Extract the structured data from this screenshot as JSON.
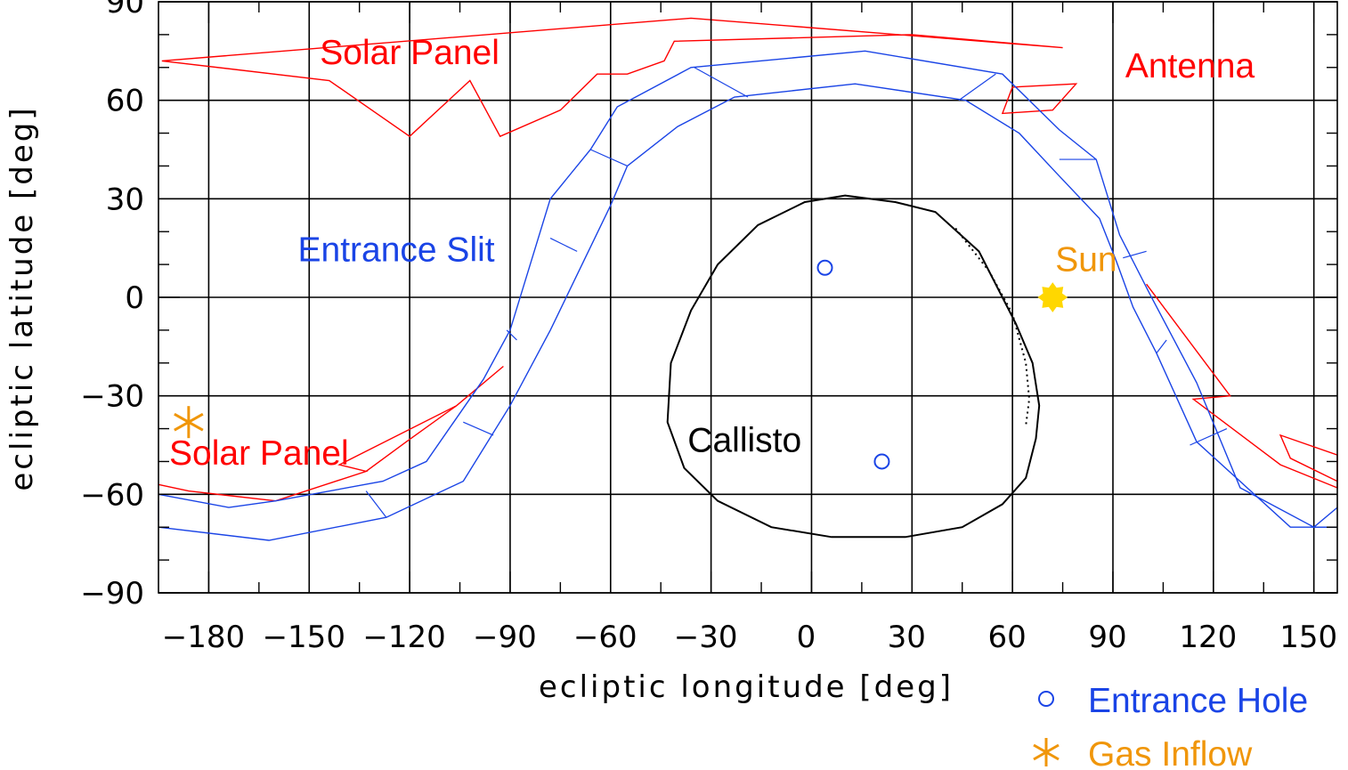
{
  "chart_data": {
    "type": "scatter",
    "title": "",
    "xlabel": "ecliptic longitude [deg]",
    "ylabel": "ecliptic latitude [deg]",
    "xlim": [
      -195,
      157
    ],
    "ylim": [
      -90,
      90
    ],
    "x_ticks": [
      -180,
      -150,
      -120,
      -90,
      -60,
      -30,
      0,
      30,
      60,
      90,
      120,
      150
    ],
    "y_ticks": [
      -90,
      -60,
      -30,
      0,
      30,
      60,
      90
    ],
    "x_tick_labels": [
      "−180",
      "−150",
      "−120",
      "−90",
      "−60",
      "−30",
      "0",
      "30",
      "60",
      "90",
      "120",
      "150"
    ],
    "y_tick_labels": [
      "−90",
      "−60",
      "−30",
      "0",
      "30",
      "60",
      "90"
    ],
    "grid": true,
    "colors": {
      "solar_panel": "#ff0000",
      "entrance_slit": "#1a44e6",
      "callisto": "#000000",
      "sun": "#ffd700",
      "gas_inflow": "#f0960a"
    },
    "annotations": [
      {
        "key": "solar_panel_top",
        "text": "Solar Panel",
        "x": -120,
        "y": 71,
        "color": "#ff0000"
      },
      {
        "key": "antenna",
        "text": "Antenna",
        "x": 113,
        "y": 67,
        "color": "#ff0000"
      },
      {
        "key": "entrance_slit",
        "text": "Entrance Slit",
        "x": -124,
        "y": 11,
        "color": "#1a44e6"
      },
      {
        "key": "sun",
        "text": "Sun",
        "x": 82,
        "y": 8,
        "color": "#f0960a"
      },
      {
        "key": "solar_panel_bottom",
        "text": "Solar Panel",
        "x": -165,
        "y": -51,
        "color": "#ff0000"
      },
      {
        "key": "callisto",
        "text": "Callisto",
        "x": -20,
        "y": -47,
        "color": "#000000"
      }
    ],
    "legend_position": "bottom-right",
    "legend": [
      {
        "label": "Entrance Hole",
        "marker": "circle",
        "color": "#1a44e6"
      },
      {
        "label": "Gas Inflow",
        "marker": "asterisk",
        "color": "#f0960a"
      }
    ],
    "series": [
      {
        "key": "entrance_hole",
        "marker": "circle",
        "color": "#1a44e6",
        "points": [
          [
            4,
            9
          ],
          [
            21,
            -50
          ]
        ]
      },
      {
        "key": "gas_inflow",
        "marker": "asterisk",
        "color": "#f0960a",
        "points": [
          [
            -186,
            -38
          ]
        ]
      },
      {
        "key": "sun",
        "marker": "star",
        "color": "#ffd700",
        "points": [
          [
            72,
            0
          ]
        ]
      },
      {
        "key": "solar_panel_top",
        "type": "line",
        "color": "#ff0000",
        "points": [
          [
            -194,
            72
          ],
          [
            -144,
            66
          ],
          [
            -120,
            49
          ],
          [
            -102,
            66
          ],
          [
            -93,
            49
          ],
          [
            -75,
            57
          ],
          [
            -64,
            68
          ],
          [
            -55,
            68
          ],
          [
            -44,
            72
          ],
          [
            -41,
            78
          ],
          [
            30,
            80
          ],
          [
            75,
            76
          ],
          [
            -36,
            85
          ],
          [
            -194,
            72
          ]
        ]
      },
      {
        "key": "antenna",
        "type": "line",
        "color": "#ff0000",
        "points": [
          [
            60,
            64
          ],
          [
            79,
            65
          ],
          [
            72,
            57
          ],
          [
            57,
            56
          ],
          [
            60,
            64
          ]
        ]
      },
      {
        "key": "solar_panel_bottom",
        "type": "line",
        "color": "#ff0000",
        "points": [
          [
            -195,
            -57
          ],
          [
            -186,
            -59
          ],
          [
            -160,
            -62
          ],
          [
            -133,
            -53
          ],
          [
            -141,
            -51
          ],
          [
            -106,
            -33
          ],
          [
            -92,
            -21
          ],
          [
            -106,
            -33
          ],
          [
            -121,
            -44
          ],
          [
            -133,
            -53
          ],
          [
            -160,
            -62
          ],
          [
            -186,
            -59
          ]
        ]
      },
      {
        "key": "solar_panel_right",
        "type": "line",
        "color": "#ff0000",
        "points": [
          [
            100,
            4
          ],
          [
            125,
            -30
          ],
          [
            114,
            -31
          ],
          [
            140,
            -51
          ],
          [
            157,
            -58
          ],
          [
            157,
            -48
          ],
          [
            140,
            -42
          ],
          [
            143,
            -49
          ],
          [
            157,
            -56
          ]
        ]
      },
      {
        "key": "entrance_slit_outer",
        "type": "line",
        "color": "#1a44e6",
        "points": [
          [
            -195,
            -60
          ],
          [
            -174,
            -64
          ],
          [
            -160,
            -62
          ],
          [
            -128,
            -56
          ],
          [
            -115,
            -50
          ],
          [
            -98,
            -25
          ],
          [
            -90,
            -10
          ],
          [
            -78,
            30
          ],
          [
            -66,
            45
          ],
          [
            -58,
            58
          ],
          [
            -36,
            70
          ],
          [
            16,
            75
          ],
          [
            57,
            68
          ],
          [
            74,
            51
          ],
          [
            85,
            42
          ],
          [
            92,
            19
          ],
          [
            101,
            1
          ],
          [
            115,
            -26
          ],
          [
            128,
            -58
          ],
          [
            150,
            -70
          ],
          [
            157,
            -64
          ]
        ]
      },
      {
        "key": "entrance_slit_inner",
        "type": "line",
        "color": "#1a44e6",
        "points": [
          [
            -195,
            -70
          ],
          [
            -162,
            -74
          ],
          [
            -127,
            -67
          ],
          [
            -104,
            -56
          ],
          [
            -90,
            -33
          ],
          [
            -78,
            -10
          ],
          [
            -60,
            28
          ],
          [
            -55,
            40
          ],
          [
            -40,
            52
          ],
          [
            -23,
            61
          ],
          [
            13,
            65
          ],
          [
            46,
            60
          ],
          [
            62,
            50
          ],
          [
            73,
            38
          ],
          [
            86,
            24
          ],
          [
            91,
            11
          ],
          [
            96,
            -3
          ],
          [
            103,
            -17
          ],
          [
            115,
            -44
          ],
          [
            143,
            -70
          ],
          [
            157,
            -70
          ]
        ]
      }
    ],
    "rungs": [
      [
        [
          -195,
          -62
        ],
        [
          -195,
          -68
        ]
      ],
      [
        [
          -133,
          -59
        ],
        [
          -127,
          -67
        ]
      ],
      [
        [
          -104,
          -38
        ],
        [
          -95,
          -42
        ]
      ],
      [
        [
          -91,
          -10
        ],
        [
          -88,
          -13
        ]
      ],
      [
        [
          -78,
          18
        ],
        [
          -70,
          14
        ]
      ],
      [
        [
          -66,
          45
        ],
        [
          -55,
          40
        ]
      ],
      [
        [
          -35,
          70
        ],
        [
          -19,
          61
        ]
      ],
      [
        [
          55,
          68
        ],
        [
          44,
          60
        ]
      ],
      [
        [
          74,
          42
        ],
        [
          85,
          42
        ]
      ],
      [
        [
          93,
          12
        ],
        [
          100,
          14
        ]
      ],
      [
        [
          103,
          -17
        ],
        [
          106,
          -13
        ]
      ],
      [
        [
          113,
          -45
        ],
        [
          124,
          -40
        ]
      ],
      [
        [
          150,
          -70
        ],
        [
          157,
          -70
        ]
      ]
    ],
    "callisto_outline": [
      [
        10,
        31
      ],
      [
        25,
        29
      ],
      [
        37,
        26
      ],
      [
        50,
        14
      ],
      [
        61,
        -8
      ],
      [
        66,
        -20
      ],
      [
        68,
        -33
      ],
      [
        67,
        -43
      ],
      [
        64,
        -55
      ],
      [
        57,
        -63
      ],
      [
        45,
        -70
      ],
      [
        28,
        -73
      ],
      [
        6,
        -73
      ],
      [
        -12,
        -70
      ],
      [
        -28,
        -62
      ],
      [
        -38,
        -52
      ],
      [
        -43,
        -38
      ],
      [
        -42,
        -20
      ],
      [
        -36,
        -4
      ],
      [
        -28,
        10
      ],
      [
        -16,
        22
      ],
      [
        -2,
        29
      ],
      [
        10,
        31
      ]
    ],
    "callisto_dotted": [
      [
        43,
        21
      ],
      [
        53,
        8
      ],
      [
        60,
        -5
      ],
      [
        64,
        -20
      ],
      [
        65,
        -31
      ],
      [
        64,
        -39
      ]
    ]
  }
}
